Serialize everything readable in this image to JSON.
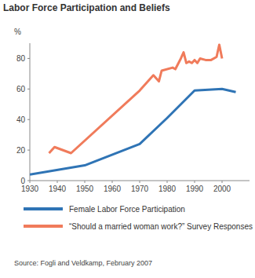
{
  "chart_data": {
    "type": "line",
    "title": "Labor Force Participation and Beliefs",
    "y_label": "%",
    "source": "Source: Fogli and Veldkamp, February 2007",
    "xlim": [
      1930,
      2010
    ],
    "xticks": [
      1930,
      1940,
      1950,
      1960,
      1970,
      1980,
      1990,
      2000
    ],
    "ylim": [
      0,
      90
    ],
    "yticks": [
      0,
      20,
      40,
      60,
      80
    ],
    "grid": false,
    "legend": "bottom",
    "series": [
      {
        "name": "Female Labor Force Participation",
        "color": "#2f74b5",
        "x": [
          1930,
          1950,
          1970,
          1980,
          1990,
          2000,
          2005
        ],
        "values": [
          4,
          10,
          24,
          41,
          59,
          60,
          58
        ]
      },
      {
        "name": "“Should a married woman work?” Survey Responses",
        "color": "#f07b5b",
        "x": [
          1937,
          1939,
          1945,
          1970,
          1975,
          1977,
          1978,
          1982,
          1983,
          1985,
          1986,
          1987,
          1988,
          1989,
          1990,
          1991,
          1992,
          1994,
          1996,
          1998,
          1999,
          2000
        ],
        "values": [
          18,
          22,
          18,
          59,
          69,
          65,
          72,
          74,
          73,
          80,
          84,
          77,
          78,
          77,
          79,
          77,
          80,
          79,
          79,
          81,
          89,
          80
        ]
      }
    ]
  }
}
